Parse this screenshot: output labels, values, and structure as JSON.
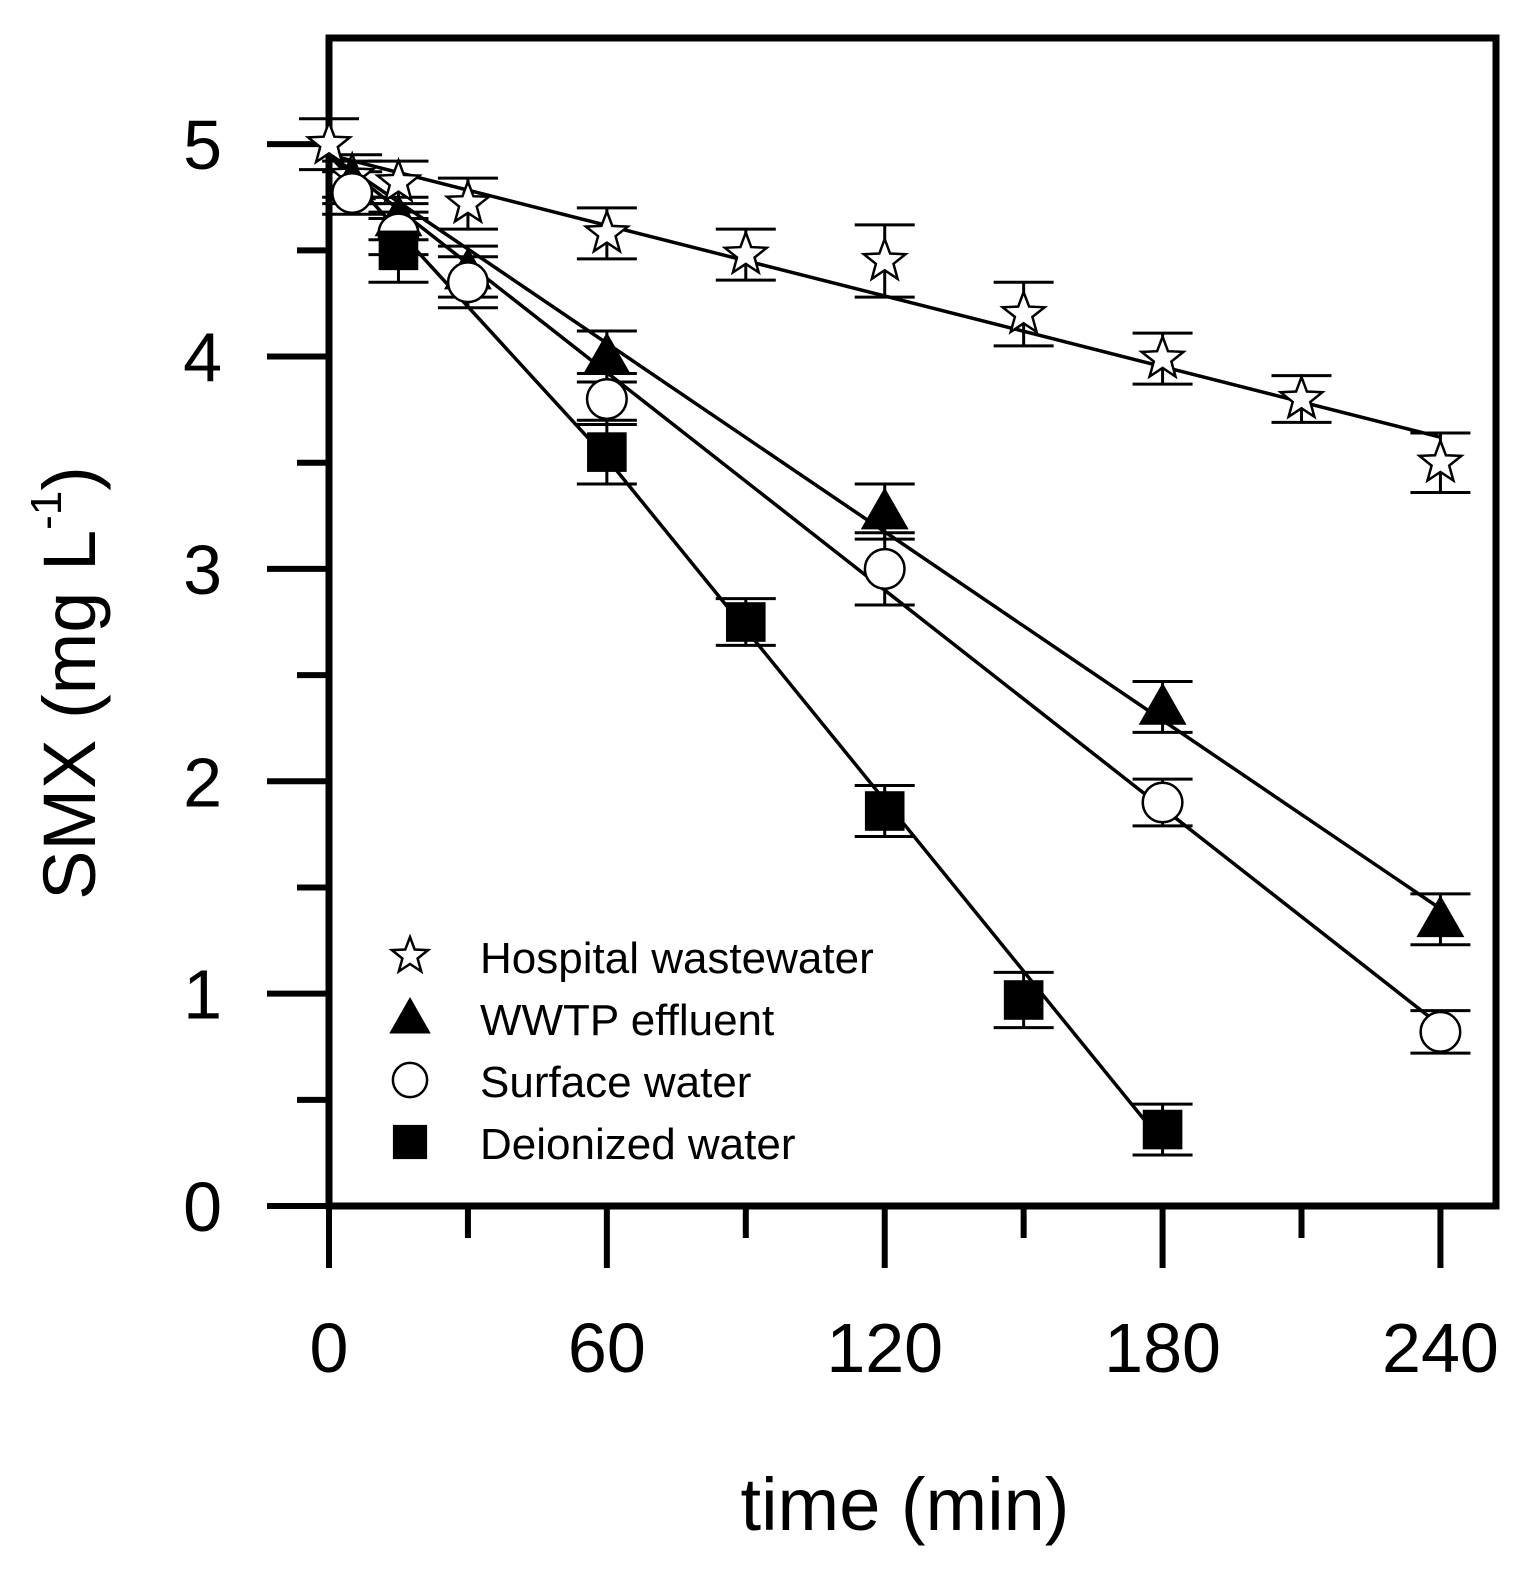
{
  "chart_data": {
    "type": "scatter",
    "title": "",
    "xlabel": "time (min)",
    "ylabel": "SMX (mg L",
    "ylabel_superscript": "-1",
    "ylabel_close": ")",
    "xlim": [
      0,
      252
    ],
    "ylim": [
      0,
      5.5
    ],
    "x_ticks": [
      0,
      60,
      120,
      180,
      240
    ],
    "x_tick_labels": [
      "0",
      "60",
      "120",
      "180",
      "240"
    ],
    "x_minor_ticks": [
      30,
      90,
      150,
      210
    ],
    "y_ticks": [
      0,
      1,
      2,
      3,
      4,
      5
    ],
    "y_tick_labels": [
      "0",
      "1",
      "2",
      "3",
      "4",
      "5"
    ],
    "y_minor_ticks": [
      0.5,
      1.5,
      2.5,
      3.5,
      4.5
    ],
    "grid": false,
    "legend_position": "bottom-left",
    "series": [
      {
        "name": "Hospital wastewater",
        "marker": "star",
        "x": [
          0,
          5,
          15,
          30,
          60,
          90,
          120,
          150,
          180,
          210,
          240
        ],
        "y": [
          5.0,
          4.85,
          4.82,
          4.72,
          4.58,
          4.48,
          4.45,
          4.2,
          3.99,
          3.8,
          3.5
        ],
        "err": [
          0.12,
          0.1,
          0.1,
          0.12,
          0.12,
          0.12,
          0.17,
          0.15,
          0.12,
          0.11,
          0.14
        ],
        "fit": {
          "x": [
            0,
            240
          ],
          "y": [
            4.95,
            3.62
          ]
        }
      },
      {
        "name": "WWTP effluent",
        "marker": "triangle",
        "x": [
          5,
          15,
          30,
          60,
          120,
          180,
          240
        ],
        "y": [
          4.82,
          4.65,
          4.4,
          4.0,
          3.27,
          2.35,
          1.35
        ],
        "err": [
          0.1,
          0.1,
          0.12,
          0.12,
          0.13,
          0.12,
          0.12
        ],
        "fit": {
          "x": [
            0,
            240
          ],
          "y": [
            4.95,
            1.4
          ]
        }
      },
      {
        "name": "Surface water",
        "marker": "circle",
        "x": [
          5,
          15,
          30,
          60,
          120,
          180,
          240
        ],
        "y": [
          4.77,
          4.58,
          4.35,
          3.8,
          3.0,
          1.9,
          0.82
        ],
        "err": [
          0.1,
          0.1,
          0.12,
          0.12,
          0.17,
          0.11,
          0.1
        ],
        "fit": {
          "x": [
            0,
            240
          ],
          "y": [
            4.95,
            0.85
          ]
        }
      },
      {
        "name": "Deionized water",
        "marker": "square",
        "x": [
          15,
          60,
          90,
          120,
          150,
          180
        ],
        "y": [
          4.5,
          3.55,
          2.75,
          1.86,
          0.97,
          0.36
        ],
        "err": [
          0.15,
          0.15,
          0.11,
          0.12,
          0.13,
          0.12
        ],
        "fit": {
          "x": [
            0,
            60,
            180
          ],
          "y": [
            4.95,
            3.52,
            0.3
          ]
        }
      }
    ]
  }
}
